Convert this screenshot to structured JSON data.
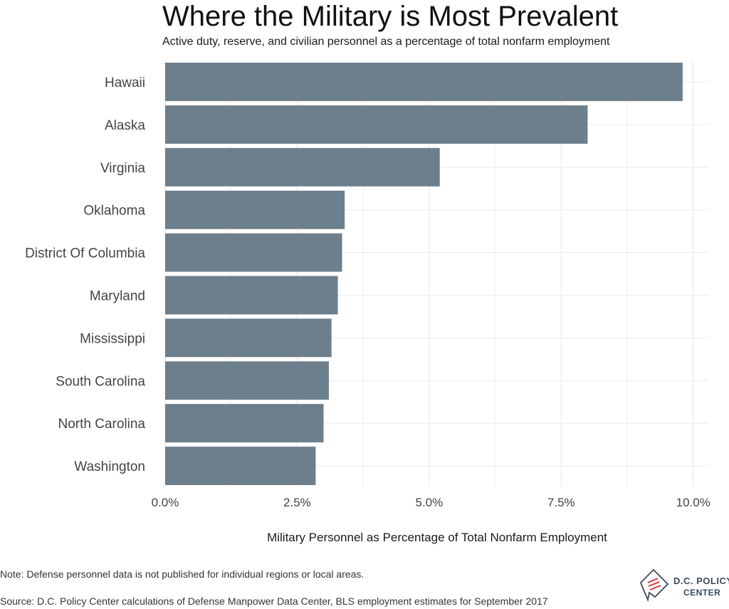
{
  "title": "Where the Military is Most Prevalent",
  "subtitle": "Active duty, reserve, and civilian personnel as a percentage of total nonfarm employment",
  "note": "Note: Defense personnel data is not published for individual regions or local areas.",
  "source": "Source: D.C. Policy Center calculations of Defense Manpower Data Center, BLS employment estimates for September 2017",
  "logo": {
    "line1": "D.C. POLICY",
    "line2": "CENTER",
    "icon": "dc-map-logo-icon"
  },
  "colors": {
    "bar": "#6d7e8c",
    "grid": "#ebebeb",
    "logo_red": "#d9353b",
    "logo_blue": "#3c4a5a"
  },
  "chart_data": {
    "type": "bar",
    "orientation": "horizontal",
    "categories": [
      "Hawaii",
      "Alaska",
      "Virginia",
      "Oklahoma",
      "District Of Columbia",
      "Maryland",
      "Mississippi",
      "South Carolina",
      "North Carolina",
      "Washington"
    ],
    "values": [
      9.8,
      8.0,
      5.2,
      3.4,
      3.35,
      3.27,
      3.15,
      3.1,
      3.0,
      2.85
    ],
    "title": "Where the Military is Most Prevalent",
    "subtitle": "Active duty, reserve, and civilian personnel as a percentage of total nonfarm employment",
    "xlabel": "Military Personnel as Percentage of Total Nonfarm Employment",
    "ylabel": "",
    "xlim": [
      0,
      10.3
    ],
    "xticks": [
      0,
      2.5,
      5,
      7.5,
      10
    ],
    "xtick_labels": [
      "0.0%",
      "2.5%",
      "5.0%",
      "7.5%",
      "10.0%"
    ],
    "grid": true,
    "legend": "none"
  }
}
